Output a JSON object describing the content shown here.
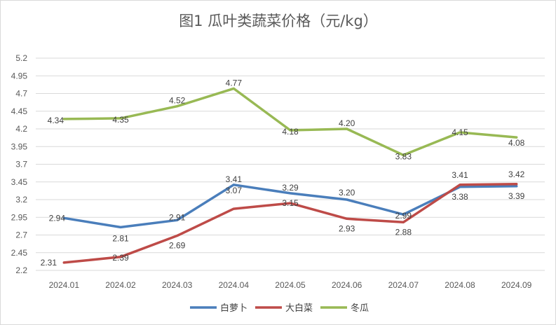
{
  "chart_data": {
    "type": "line",
    "title": "图1   瓜叶类蔬菜价格（元/kg）",
    "categories": [
      "2024.01",
      "2024.02",
      "2024.03",
      "2024.04",
      "2024.05",
      "2024.06",
      "2024.07",
      "2024.08",
      "2024.09"
    ],
    "series": [
      {
        "name": "白萝卜",
        "color": "#4a7ebb",
        "values": [
          2.94,
          2.81,
          2.91,
          3.41,
          3.29,
          3.2,
          2.99,
          3.38,
          3.39
        ]
      },
      {
        "name": "大白菜",
        "color": "#be4b48",
        "values": [
          2.31,
          2.39,
          2.69,
          3.07,
          3.15,
          2.93,
          2.88,
          3.41,
          3.42
        ]
      },
      {
        "name": "冬瓜",
        "color": "#98b954",
        "values": [
          4.34,
          4.35,
          4.52,
          4.77,
          4.18,
          4.2,
          3.83,
          4.15,
          4.08
        ]
      }
    ],
    "yticks": [
      "2.2",
      "2.45",
      "2.7",
      "2.95",
      "3.2",
      "3.45",
      "3.7",
      "3.95",
      "4.2",
      "4.45",
      "4.7",
      "4.95",
      "5.2"
    ],
    "ylim": [
      2.2,
      5.2
    ],
    "grid": true,
    "legend": "bottom",
    "xlabel": "",
    "ylabel": ""
  }
}
